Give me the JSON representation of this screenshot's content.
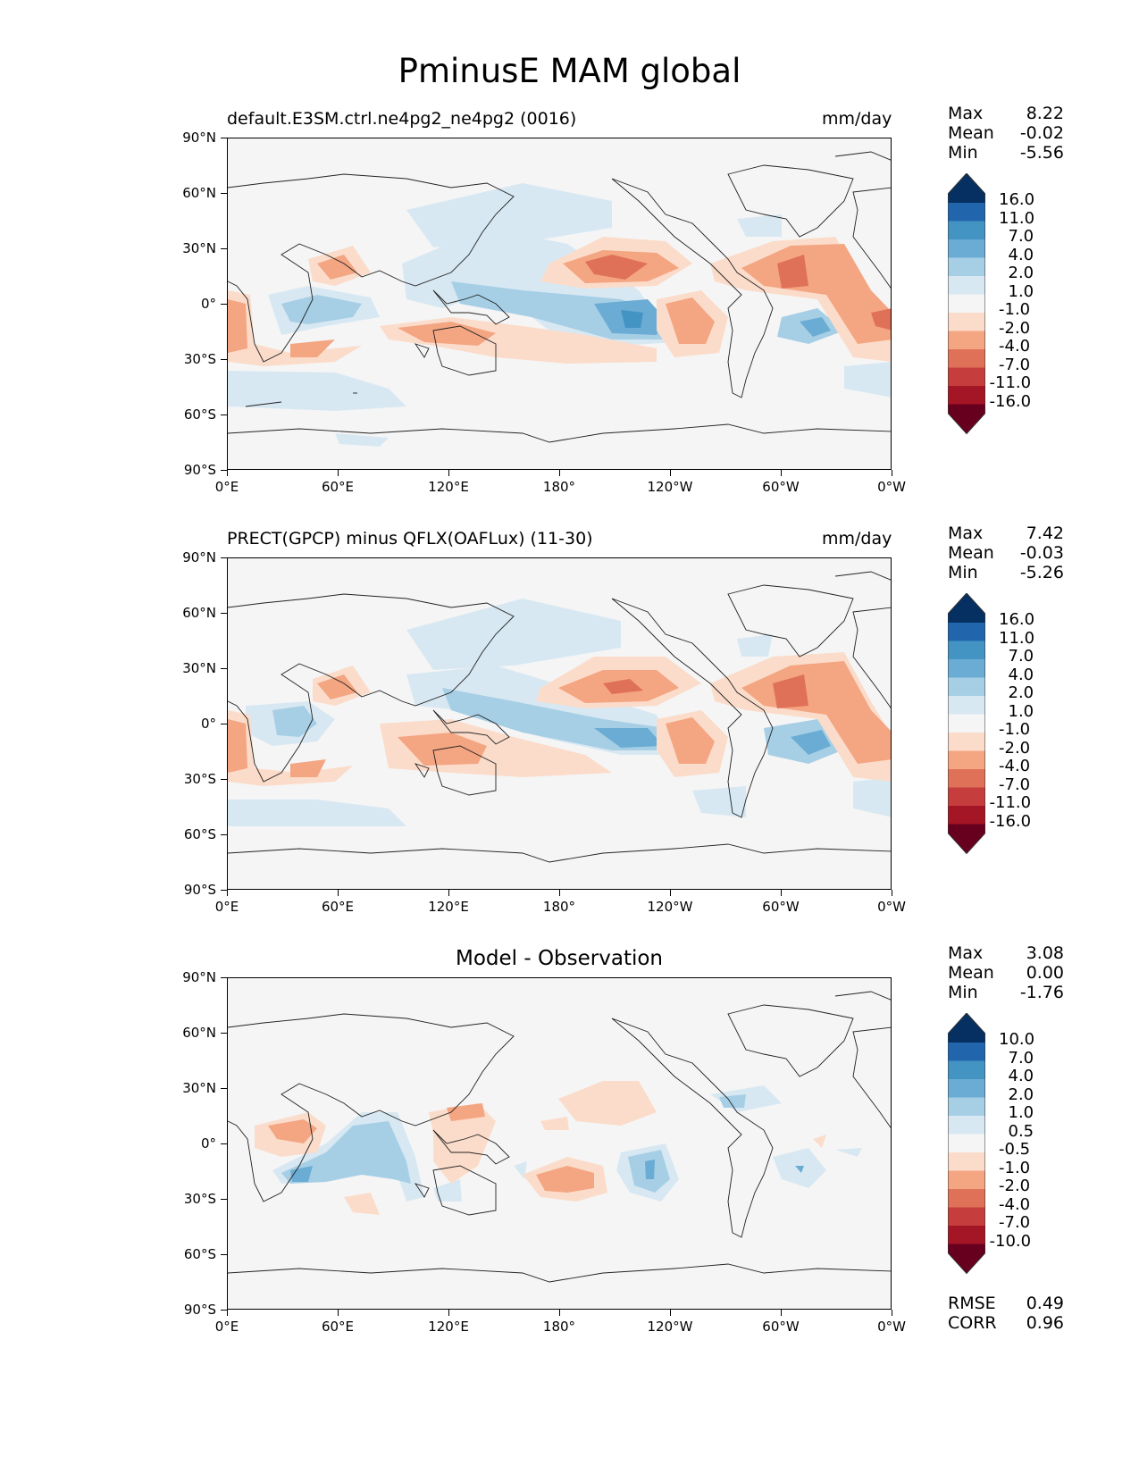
{
  "figure": {
    "title": "PminusE MAM global",
    "latitude_ticks": [
      "90°N",
      "60°N",
      "30°N",
      "0°",
      "30°S",
      "60°S",
      "90°S"
    ],
    "longitude_ticks": [
      "0°E",
      "60°E",
      "120°E",
      "180°",
      "120°W",
      "60°W",
      "0°W"
    ]
  },
  "panels": [
    {
      "title": "default.E3SM.ctrl.ne4pg2_ne4pg2 (0016)",
      "units": "mm/day",
      "stats": {
        "max_label": "Max",
        "max": "8.22",
        "mean_label": "Mean",
        "mean": "-0.02",
        "min_label": "Min",
        "min": "-5.56"
      },
      "colorbar_labels": [
        "16.0",
        "11.0",
        "7.0",
        "4.0",
        "2.0",
        "1.0",
        "-1.0",
        "-2.0",
        "-4.0",
        "-7.0",
        "-11.0",
        "-16.0"
      ]
    },
    {
      "title": "PRECT(GPCP) minus QFLX(OAFLux) (11-30)",
      "units": "mm/day",
      "stats": {
        "max_label": "Max",
        "max": "7.42",
        "mean_label": "Mean",
        "mean": "-0.03",
        "min_label": "Min",
        "min": "-5.26"
      },
      "colorbar_labels": [
        "16.0",
        "11.0",
        "7.0",
        "4.0",
        "2.0",
        "1.0",
        "-1.0",
        "-2.0",
        "-4.0",
        "-7.0",
        "-11.0",
        "-16.0"
      ]
    },
    {
      "title": "Model - Observation",
      "units": "",
      "stats": {
        "max_label": "Max",
        "max": "3.08",
        "mean_label": "Mean",
        "mean": "0.00",
        "min_label": "Min",
        "min": "-1.76"
      },
      "colorbar_labels": [
        "10.0",
        "7.0",
        "4.0",
        "2.0",
        "1.0",
        "0.5",
        "-0.5",
        "-1.0",
        "-2.0",
        "-4.0",
        "-7.0",
        "-10.0"
      ],
      "error_stats": {
        "rmse_label": "RMSE",
        "rmse": "0.49",
        "corr_label": "CORR",
        "corr": "0.96"
      }
    }
  ],
  "colors": {
    "background": "#f5f5f5",
    "colorbar": [
      "#053061",
      "#2166ac",
      "#4393c3",
      "#6aacd3",
      "#a6cfe6",
      "#d8e8f2",
      "#f5f5f5",
      "#fbdcca",
      "#f4a582",
      "#e07159",
      "#c53e3d",
      "#a41526",
      "#67001f"
    ]
  }
}
